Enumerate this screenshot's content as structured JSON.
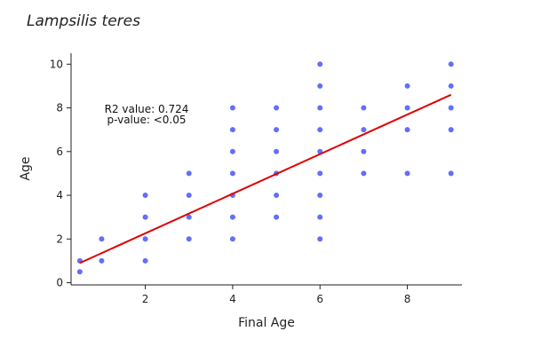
{
  "chart_data": {
    "type": "scatter",
    "title": "Lampsilis teres",
    "xlabel": "Final Age",
    "ylabel": "Age",
    "xlim": [
      0.3,
      9.25
    ],
    "ylim": [
      -0.1,
      10.5
    ],
    "xticks": [
      2,
      4,
      6,
      8
    ],
    "yticks": [
      0,
      2,
      4,
      6,
      8,
      10
    ],
    "grid": false,
    "point_color": "#636efa",
    "fit_color": "#e00000",
    "annotations": [
      "R2 value: 0.724",
      "p-value: <0.05"
    ],
    "points": [
      [
        0.5,
        0.5
      ],
      [
        0.5,
        1
      ],
      [
        1,
        1
      ],
      [
        1,
        2
      ],
      [
        2,
        1
      ],
      [
        2,
        2
      ],
      [
        2,
        3
      ],
      [
        2,
        4
      ],
      [
        3,
        2
      ],
      [
        3,
        3
      ],
      [
        3,
        4
      ],
      [
        3,
        5
      ],
      [
        4,
        2
      ],
      [
        4,
        3
      ],
      [
        4,
        4
      ],
      [
        4,
        5
      ],
      [
        4,
        6
      ],
      [
        4,
        7
      ],
      [
        4,
        8
      ],
      [
        5,
        3
      ],
      [
        5,
        4
      ],
      [
        5,
        5
      ],
      [
        5,
        6
      ],
      [
        5,
        7
      ],
      [
        5,
        8
      ],
      [
        6,
        2
      ],
      [
        6,
        3
      ],
      [
        6,
        4
      ],
      [
        6,
        5
      ],
      [
        6,
        6
      ],
      [
        6,
        7
      ],
      [
        6,
        8
      ],
      [
        6,
        9
      ],
      [
        6,
        10
      ],
      [
        7,
        5
      ],
      [
        7,
        6
      ],
      [
        7,
        7
      ],
      [
        7,
        8
      ],
      [
        8,
        5
      ],
      [
        8,
        7
      ],
      [
        8,
        8
      ],
      [
        8,
        9
      ],
      [
        9,
        5
      ],
      [
        9,
        7
      ],
      [
        9,
        8
      ],
      [
        9,
        9
      ],
      [
        9,
        10
      ]
    ],
    "fit_line": {
      "x": [
        0.5,
        9
      ],
      "y": [
        0.9,
        8.6
      ]
    }
  }
}
